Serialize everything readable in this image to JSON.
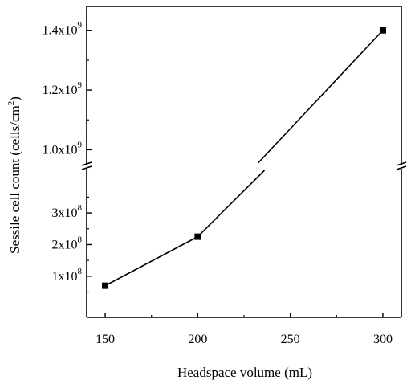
{
  "chart_data": {
    "type": "line",
    "xlabel": "Headspace volume (mL)",
    "ylabel": "Sessile cell count (cells/cm",
    "ylabel_sup": "2",
    "ylabel_tail": ")",
    "x_ticks": [
      "150",
      "200",
      "250",
      "300"
    ],
    "xlim": [
      140,
      310
    ],
    "y_axis_break": true,
    "upper_segment": {
      "ylim": [
        950000000,
        1480000000
      ],
      "ticks": [
        {
          "value": 1000000000,
          "mantissa": "1.0x10",
          "exponent": "9"
        },
        {
          "value": 1200000000,
          "mantissa": "1.2x10",
          "exponent": "9"
        },
        {
          "value": 1400000000,
          "mantissa": "1.4x10",
          "exponent": "9"
        }
      ]
    },
    "lower_segment": {
      "ylim": [
        -30000000,
        440000000
      ],
      "ticks": [
        {
          "value": 100000000,
          "mantissa": "1x10",
          "exponent": "8"
        },
        {
          "value": 200000000,
          "mantissa": "2x10",
          "exponent": "8"
        },
        {
          "value": 300000000,
          "mantissa": "3x10",
          "exponent": "8"
        }
      ]
    },
    "series": [
      {
        "x": [
          150,
          200,
          300
        ],
        "y": [
          70000000,
          225000000,
          1400000000
        ]
      }
    ],
    "line_color": "#000000",
    "marker": "square"
  }
}
